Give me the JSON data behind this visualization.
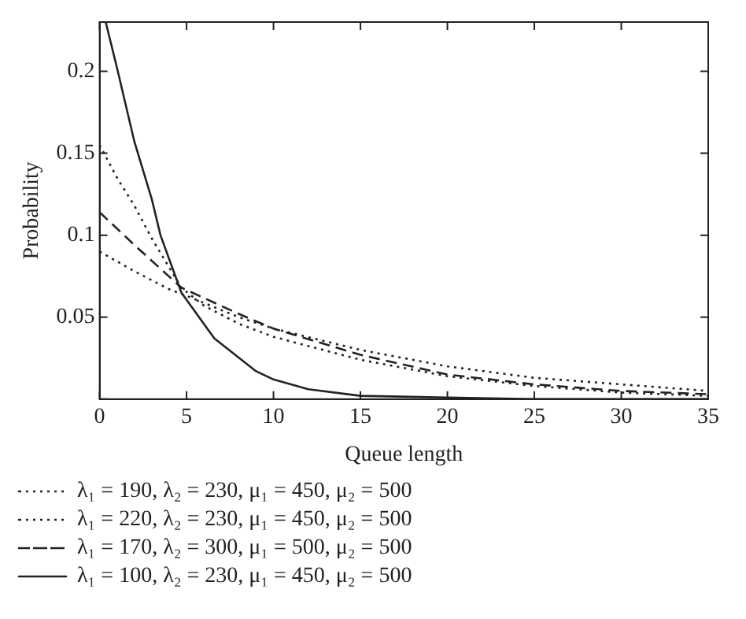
{
  "chart_data": {
    "type": "line",
    "xlabel": "Queue length",
    "ylabel": "Probability",
    "xlim": [
      0,
      35
    ],
    "xticks": [
      0,
      5,
      10,
      15,
      20,
      25,
      30,
      35
    ],
    "ylim": [
      0,
      0.23
    ],
    "yticks": [
      {
        "value": 0,
        "label": null
      },
      0.05,
      0.1,
      0.15,
      0.2
    ],
    "grid": false,
    "legend": "bottom",
    "marker": "none",
    "series": [
      {
        "name": "λ₁ = 190, λ₂ = 230, μ₁ = 450, μ₂ = 500",
        "color": "#222222",
        "line_style": "dotted",
        "x": [
          0,
          1,
          2,
          3,
          4.7,
          6,
          8,
          10,
          15,
          20,
          25,
          30,
          35
        ],
        "values": [
          0.155,
          0.135,
          0.118,
          0.098,
          0.068,
          0.057,
          0.046,
          0.038,
          0.024,
          0.014,
          0.008,
          0.004,
          0.002
        ]
      },
      {
        "name": "λ₁ = 220, λ₂ = 230, μ₁ = 450, μ₂ = 500",
        "color": "#222222",
        "line_style": "dotted",
        "x": [
          0,
          2,
          4,
          5,
          8,
          10,
          15,
          20,
          25,
          30,
          35
        ],
        "values": [
          0.09,
          0.078,
          0.067,
          0.063,
          0.05,
          0.043,
          0.03,
          0.02,
          0.013,
          0.009,
          0.005
        ]
      },
      {
        "name": "λ₁ = 170, λ₂ = 300, μ₁ = 500, μ₂ = 500",
        "color": "#222222",
        "line_style": "dashed",
        "x": [
          0,
          2,
          4.7,
          8,
          10,
          15,
          20,
          25,
          30,
          35
        ],
        "values": [
          0.114,
          0.094,
          0.068,
          0.052,
          0.043,
          0.027,
          0.015,
          0.009,
          0.005,
          0.003
        ]
      },
      {
        "name": "λ₁ = 100, λ₂ = 230, μ₁ = 450, μ₂ = 500",
        "color": "#222222",
        "line_style": "solid",
        "x": [
          0.35,
          1,
          2,
          3,
          3.5,
          4.7,
          6.6,
          9,
          10,
          12,
          15,
          20,
          25,
          35
        ],
        "values": [
          0.23,
          0.202,
          0.157,
          0.122,
          0.1,
          0.065,
          0.037,
          0.017,
          0.012,
          0.006,
          0.002,
          0.001,
          0,
          0
        ]
      }
    ]
  }
}
